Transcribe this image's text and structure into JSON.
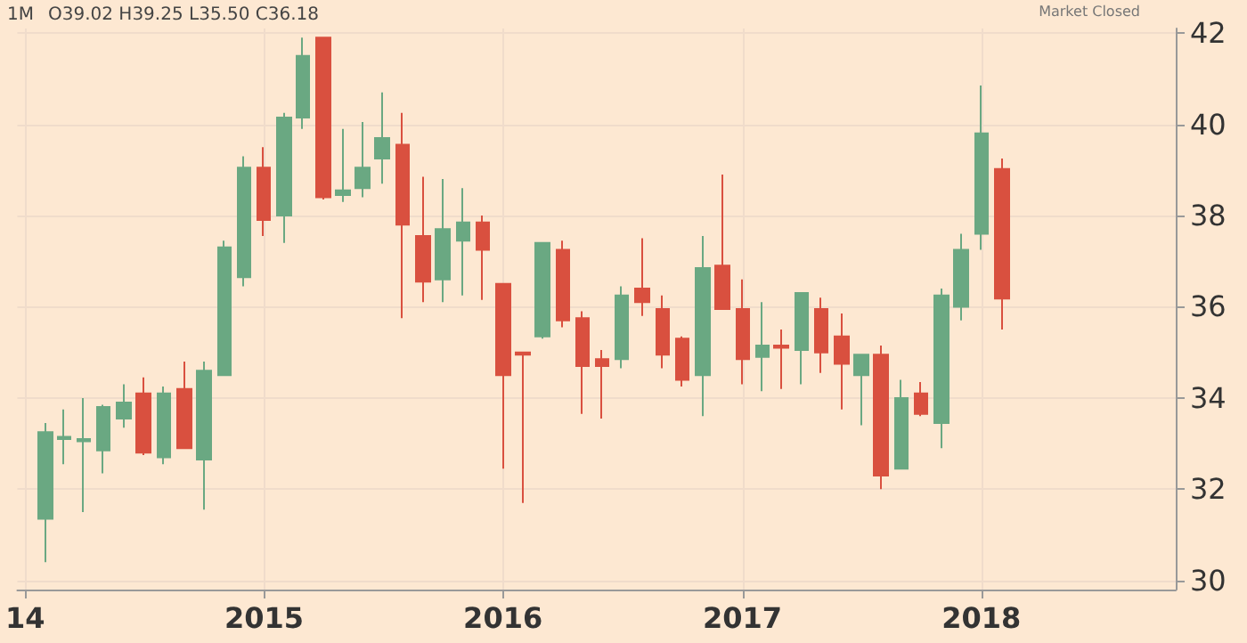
{
  "chart_data": {
    "type": "candlestick",
    "title": "1M",
    "subtitle": "O39.02 H39.25 L35.50 C36.18",
    "annotations": [
      "Market Closed"
    ],
    "x": [
      "2014-02",
      "2014-03",
      "2014-04",
      "2014-05",
      "2014-06",
      "2014-07",
      "2014-08",
      "2014-09",
      "2014-10",
      "2014-11",
      "2014-12",
      "2015-01",
      "2015-02",
      "2015-03",
      "2015-04",
      "2015-05",
      "2015-06",
      "2015-07",
      "2015-08",
      "2015-09",
      "2015-10",
      "2015-11",
      "2015-12",
      "2016-01",
      "2016-02",
      "2016-03",
      "2016-04",
      "2016-05",
      "2016-06",
      "2016-07",
      "2016-08",
      "2016-09",
      "2016-10",
      "2016-11",
      "2016-12",
      "2017-01",
      "2017-02",
      "2017-03",
      "2017-04",
      "2017-05",
      "2017-06",
      "2017-07",
      "2017-08",
      "2017-09",
      "2017-10",
      "2017-11",
      "2017-12",
      "2018-01",
      "2018-02"
    ],
    "ohlc": [
      [
        31.35,
        33.45,
        30.4,
        33.25
      ],
      [
        33.1,
        33.75,
        32.55,
        33.15
      ],
      [
        33.05,
        34.0,
        31.5,
        33.1
      ],
      [
        32.85,
        33.85,
        32.35,
        33.8
      ],
      [
        33.55,
        34.3,
        33.35,
        33.9
      ],
      [
        34.1,
        34.45,
        32.75,
        32.8
      ],
      [
        32.7,
        34.25,
        32.55,
        34.1
      ],
      [
        34.2,
        34.8,
        32.9,
        32.9
      ],
      [
        32.65,
        34.8,
        31.55,
        34.6
      ],
      [
        34.5,
        37.45,
        34.5,
        37.3
      ],
      [
        36.65,
        39.3,
        36.45,
        39.05
      ],
      [
        39.05,
        39.5,
        37.55,
        37.9
      ],
      [
        38.0,
        40.25,
        37.4,
        40.15
      ],
      [
        40.15,
        41.9,
        39.9,
        41.5
      ],
      [
        41.9,
        41.9,
        38.35,
        38.4
      ],
      [
        38.45,
        39.9,
        38.3,
        38.55
      ],
      [
        38.6,
        40.05,
        38.4,
        39.05
      ],
      [
        39.25,
        40.7,
        38.7,
        39.7
      ],
      [
        39.55,
        40.25,
        35.75,
        37.8
      ],
      [
        37.55,
        38.85,
        36.1,
        36.55
      ],
      [
        36.6,
        38.8,
        36.1,
        37.7
      ],
      [
        37.45,
        38.6,
        36.25,
        37.85
      ],
      [
        37.85,
        38.0,
        36.15,
        37.25
      ],
      [
        36.5,
        36.5,
        32.45,
        34.5
      ],
      [
        35.0,
        35.0,
        31.7,
        34.95
      ],
      [
        35.35,
        37.4,
        35.3,
        37.4
      ],
      [
        37.25,
        37.45,
        35.55,
        35.7
      ],
      [
        35.75,
        35.9,
        33.65,
        34.7
      ],
      [
        34.85,
        35.05,
        33.55,
        34.7
      ],
      [
        34.85,
        36.45,
        34.65,
        36.25
      ],
      [
        36.4,
        37.5,
        35.8,
        36.1
      ],
      [
        35.95,
        36.25,
        34.65,
        34.95
      ],
      [
        35.3,
        35.35,
        34.25,
        34.4
      ],
      [
        34.5,
        37.55,
        33.6,
        36.85
      ],
      [
        36.9,
        38.9,
        35.95,
        35.95
      ],
      [
        35.95,
        36.6,
        34.3,
        34.85
      ],
      [
        34.9,
        36.1,
        34.15,
        35.15
      ],
      [
        35.15,
        35.5,
        34.2,
        35.1
      ],
      [
        35.05,
        36.3,
        34.3,
        36.3
      ],
      [
        35.95,
        36.2,
        34.55,
        35.0
      ],
      [
        35.35,
        35.85,
        33.75,
        34.75
      ],
      [
        34.5,
        34.95,
        33.4,
        34.95
      ],
      [
        34.95,
        35.15,
        32.0,
        32.3
      ],
      [
        32.45,
        34.4,
        32.45,
        34.0
      ],
      [
        34.1,
        34.35,
        33.6,
        33.65
      ],
      [
        33.45,
        36.4,
        32.9,
        36.25
      ],
      [
        36.0,
        37.6,
        35.7,
        37.25
      ],
      [
        37.6,
        40.85,
        37.25,
        39.8
      ],
      [
        39.02,
        39.25,
        35.5,
        36.18
      ]
    ],
    "colors": [
      "#6aa882",
      "#6aa882",
      "#6aa882",
      "#6aa882",
      "#6aa882",
      "#d9503f",
      "#6aa882",
      "#d9503f",
      "#6aa882",
      "#6aa882",
      "#6aa882",
      "#d9503f",
      "#6aa882",
      "#6aa882",
      "#d9503f",
      "#6aa882",
      "#6aa882",
      "#6aa882",
      "#d9503f",
      "#d9503f",
      "#6aa882",
      "#6aa882",
      "#d9503f",
      "#d9503f",
      "#d9503f",
      "#6aa882",
      "#d9503f",
      "#d9503f",
      "#d9503f",
      "#6aa882",
      "#d9503f",
      "#d9503f",
      "#d9503f",
      "#6aa882",
      "#d9503f",
      "#d9503f",
      "#6aa882",
      "#d9503f",
      "#6aa882",
      "#d9503f",
      "#d9503f",
      "#6aa882",
      "#d9503f",
      "#6aa882",
      "#d9503f",
      "#6aa882",
      "#6aa882",
      "#6aa882",
      "#d9503f"
    ],
    "xlim": [
      "2013-12-20",
      "2018-10-25"
    ],
    "xticks": [
      {
        "value": "2014",
        "label": "14"
      },
      "2015",
      "2016",
      "2017",
      "2018"
    ],
    "ylim": [
      29.8,
      42.1
    ],
    "yticks": [
      30,
      32,
      34,
      36,
      38,
      40,
      42
    ],
    "grid": true
  }
}
